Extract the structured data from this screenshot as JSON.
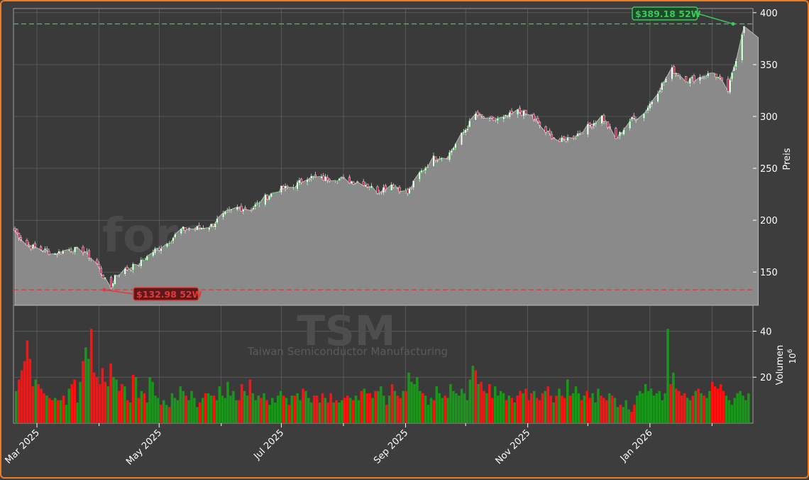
{
  "colors": {
    "background": "#3d3d3d",
    "panel": "#3a3a3a",
    "price_area": "#8a8a8a",
    "grid": "#6a6a6a",
    "up": "#1a961a",
    "down": "#ff1111",
    "high_line": "#3cc85a",
    "low_line": "#e03a3a",
    "watermark": "#4a4a4a",
    "axis_text": "#ffffff",
    "frame": "#f07a1e"
  },
  "watermark": {
    "site": "forexsignale.trade",
    "ticker": "TSM",
    "company": "Taiwan Semiconductor Manufacturing"
  },
  "chart_data": [
    {
      "type": "line",
      "style": "candlestick with shaded area",
      "ylabel": "Preis",
      "ylim": [
        118,
        404
      ],
      "yticks": [
        150,
        200,
        250,
        300,
        350,
        400
      ],
      "x_tick_labels": [
        "Mar 2025",
        "May 2025",
        "Jul 2025",
        "Sep 2025",
        "Nov 2025",
        "Jan 2026"
      ],
      "x_range": [
        "2025-02-18",
        "2026-02-20"
      ],
      "grid": true,
      "series": [
        {
          "x": [
            "2025-02-18",
            "2025-02-24",
            "2025-03-03",
            "2025-03-10",
            "2025-03-17",
            "2025-03-24",
            "2025-03-31",
            "2025-04-04",
            "2025-04-07",
            "2025-04-09",
            "2025-04-14",
            "2025-04-21",
            "2025-04-28",
            "2025-05-05",
            "2025-05-12",
            "2025-05-19",
            "2025-05-27",
            "2025-06-02",
            "2025-06-09",
            "2025-06-16",
            "2025-06-23",
            "2025-06-30",
            "2025-07-07",
            "2025-07-14",
            "2025-07-21",
            "2025-07-28",
            "2025-08-04",
            "2025-08-11",
            "2025-08-18",
            "2025-08-25",
            "2025-09-02",
            "2025-09-08",
            "2025-09-15",
            "2025-09-22",
            "2025-09-29",
            "2025-10-06",
            "2025-10-13",
            "2025-10-20",
            "2025-10-27",
            "2025-11-03",
            "2025-11-10",
            "2025-11-17",
            "2025-11-24",
            "2025-12-01",
            "2025-12-08",
            "2025-12-15",
            "2025-12-22",
            "2025-12-29",
            "2026-01-05",
            "2026-01-12",
            "2026-01-20",
            "2026-01-26",
            "2026-02-02",
            "2026-02-09",
            "2026-02-13",
            "2026-02-17"
          ],
          "values": [
            190,
            176,
            172,
            168,
            172,
            171,
            158,
            142,
            135,
            147,
            152,
            158,
            170,
            178,
            191,
            192,
            195,
            205,
            212,
            211,
            222,
            230,
            232,
            242,
            240,
            241,
            238,
            236,
            228,
            235,
            226,
            245,
            260,
            262,
            282,
            302,
            296,
            298,
            305,
            300,
            285,
            276,
            281,
            290,
            300,
            278,
            296,
            303,
            325,
            345,
            335,
            338,
            342,
            325,
            356,
            389.18
          ]
        }
      ],
      "annotations": [
        {
          "label": "$389.18 52W",
          "value": 389.18,
          "kind": "52-week high"
        },
        {
          "label": "$132.98 52W",
          "value": 132.98,
          "kind": "52-week low"
        }
      ]
    },
    {
      "type": "bar",
      "ylabel": "Volumen",
      "ylabel_exponent": "10",
      "ylabel_exponent_power": "6",
      "ylim": [
        0,
        50
      ],
      "yticks": [
        20,
        40
      ],
      "series": [
        {
          "name": "volume",
          "values": [
            14,
            19,
            23,
            27,
            36,
            28,
            16,
            19,
            17,
            15,
            13,
            12,
            11,
            10,
            11,
            10,
            10,
            12,
            8,
            15,
            17,
            19,
            9,
            18,
            27,
            33,
            28,
            41,
            22,
            20,
            17,
            24,
            18,
            16,
            26,
            20,
            19,
            14,
            17,
            16,
            10,
            9,
            21,
            20,
            11,
            14,
            13,
            9,
            20,
            18,
            12,
            11,
            8,
            10,
            8,
            7,
            13,
            11,
            10,
            16,
            14,
            12,
            10,
            14,
            11,
            7,
            9,
            11,
            13,
            13,
            12,
            12,
            10,
            16,
            12,
            11,
            18,
            12,
            14,
            10,
            10,
            17,
            14,
            12,
            19,
            13,
            10,
            12,
            11,
            13,
            10,
            8,
            11,
            9,
            12,
            14,
            12,
            11,
            8,
            12,
            12,
            13,
            10,
            15,
            14,
            11,
            9,
            12,
            12,
            9,
            13,
            11,
            9,
            13,
            9,
            10,
            9,
            10,
            11,
            12,
            11,
            10,
            12,
            10,
            14,
            15,
            13,
            13,
            11,
            14,
            14,
            16,
            12,
            8,
            12,
            17,
            14,
            12,
            11,
            14,
            14,
            22,
            18,
            17,
            20,
            14,
            13,
            12,
            8,
            11,
            10,
            16,
            13,
            11,
            12,
            11,
            17,
            14,
            13,
            12,
            15,
            13,
            10,
            19,
            25,
            23,
            17,
            18,
            14,
            13,
            17,
            11,
            16,
            12,
            14,
            13,
            10,
            12,
            11,
            9,
            12,
            14,
            13,
            15,
            10,
            13,
            14,
            11,
            10,
            13,
            14,
            16,
            12,
            9,
            12,
            15,
            12,
            11,
            19,
            12,
            13,
            16,
            13,
            10,
            12,
            14,
            11,
            13,
            9,
            15,
            12,
            11,
            10,
            13,
            12,
            11,
            7,
            8,
            7,
            10,
            6,
            5,
            8,
            12,
            14,
            13,
            17,
            14,
            15,
            12,
            13,
            14,
            10,
            13,
            41,
            17,
            22,
            15,
            14,
            12,
            13,
            11,
            10,
            12,
            14,
            15,
            13,
            12,
            11,
            14,
            18,
            16,
            15,
            17,
            14,
            12,
            10,
            8,
            11,
            13,
            14,
            12,
            10,
            13
          ]
        }
      ]
    }
  ]
}
